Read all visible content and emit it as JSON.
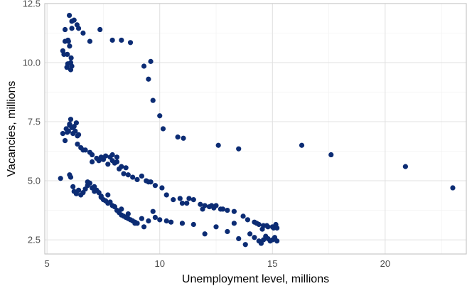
{
  "chart_data": {
    "type": "scatter",
    "title": "",
    "xlabel": "Unemployment level, millions",
    "ylabel": "Vacancies, millions",
    "xlim": [
      4.9,
      23.6
    ],
    "ylim": [
      1.9,
      12.5
    ],
    "x_ticks": [
      5,
      10,
      15,
      20
    ],
    "y_ticks": [
      2.5,
      5.0,
      7.5,
      10.0,
      12.5
    ],
    "x_tick_labels": [
      "5",
      "10",
      "15",
      "20"
    ],
    "y_tick_labels": [
      "2.5",
      "5.0",
      "7.5",
      "10.0",
      "12.5"
    ],
    "grid": true,
    "legend": "none",
    "point_color": "#0c2c74",
    "series": [
      {
        "x": [
          5.99,
          6.2,
          6.33,
          6.1,
          6.4,
          6.6,
          6.1,
          5.8,
          5.93,
          5.95,
          5.8,
          6.0,
          5.7,
          5.75,
          5.9,
          6.07,
          6.05,
          5.92,
          6.1,
          5.88,
          6.05,
          7.35,
          6.9,
          7.9,
          8.3,
          8.7,
          9.3,
          9.6,
          9.5,
          9.7,
          10.0,
          10.15,
          10.8,
          11.05,
          12.6,
          13.5,
          16.3,
          17.6,
          20.9,
          23.0
        ],
        "y": [
          12.0,
          11.8,
          11.6,
          11.75,
          11.45,
          11.25,
          11.45,
          11.4,
          10.95,
          10.9,
          10.9,
          10.7,
          10.5,
          10.35,
          10.35,
          10.2,
          10.0,
          9.95,
          9.85,
          9.8,
          9.7,
          11.4,
          10.9,
          10.95,
          10.95,
          10.85,
          9.85,
          10.05,
          9.3,
          8.4,
          7.75,
          7.2,
          6.85,
          6.8,
          6.5,
          6.35,
          6.5,
          6.1,
          5.6,
          4.7
        ]
      },
      {
        "x": [
          5.7,
          5.85,
          6.0,
          6.2,
          6.3,
          6.05,
          5.95,
          6.15,
          6.35,
          6.4,
          5.9,
          6.1,
          6.25,
          6.0,
          5.8,
          6.35,
          6.5,
          6.6,
          6.7,
          6.9,
          7.0,
          7.2,
          7.4,
          7.6,
          7.8,
          7.9,
          8.0,
          8.1,
          7.5,
          7.7,
          8.2,
          8.4,
          8.6,
          8.5,
          8.8,
          9.0,
          9.2,
          9.4,
          9.6,
          9.8,
          10.3,
          10.6,
          10.9,
          11.2,
          11.5,
          11.8,
          12.0,
          12.2,
          12.5,
          12.8,
          13.0,
          13.3,
          13.7,
          13.9,
          14.2,
          14.4,
          14.6,
          14.8,
          15.0,
          15.2,
          7.0,
          7.3,
          7.9,
          8.1,
          8.3,
          9.5,
          10.1,
          11.0,
          11.9,
          12.4,
          12.7
        ],
        "y": [
          7.0,
          7.2,
          7.35,
          7.3,
          7.45,
          7.6,
          7.1,
          7.0,
          6.9,
          6.95,
          7.05,
          7.25,
          7.1,
          7.4,
          6.7,
          6.55,
          6.4,
          6.3,
          6.3,
          6.2,
          6.1,
          5.95,
          6.0,
          6.05,
          6.0,
          5.85,
          5.75,
          5.8,
          5.9,
          5.7,
          5.5,
          5.3,
          5.25,
          5.55,
          5.15,
          5.05,
          5.2,
          5.0,
          4.95,
          4.8,
          4.4,
          4.2,
          4.25,
          4.05,
          4.2,
          4.0,
          3.95,
          3.9,
          3.95,
          3.8,
          3.75,
          3.7,
          3.5,
          3.35,
          3.25,
          3.15,
          3.1,
          3.05,
          3.05,
          3.0,
          5.8,
          5.85,
          6.1,
          6.0,
          5.6,
          4.95,
          4.7,
          4.05,
          3.8,
          3.85,
          3.8
        ]
      },
      {
        "x": [
          5.6,
          6.0,
          6.05,
          6.15,
          6.2,
          6.3,
          6.4,
          6.5,
          6.6,
          6.7,
          6.8,
          6.9,
          7.0,
          7.1,
          7.2,
          7.3,
          7.4,
          7.5,
          7.6,
          7.7,
          7.8,
          7.9,
          8.0,
          8.1,
          8.2,
          8.3,
          8.4,
          8.5,
          8.6,
          8.7,
          8.8,
          8.9,
          9.0,
          9.2,
          9.5,
          9.8,
          10.0,
          10.5,
          11.0,
          11.5,
          12.0,
          12.5,
          13.0,
          13.5,
          13.8,
          14.0,
          14.2,
          14.4,
          14.5,
          14.6,
          14.7,
          14.8,
          14.9,
          15.0,
          15.1,
          15.2,
          6.8,
          7.1,
          7.4,
          7.7,
          8.0,
          8.3,
          8.6,
          8.9,
          9.3,
          9.7,
          10.3,
          11.3,
          12.3,
          13.3,
          14.3,
          14.55,
          14.75,
          15.05,
          15.15
        ],
        "y": [
          5.1,
          5.25,
          5.15,
          4.75,
          4.55,
          4.45,
          4.6,
          4.4,
          4.5,
          4.65,
          4.8,
          4.9,
          4.7,
          4.75,
          4.6,
          4.5,
          4.35,
          4.2,
          4.15,
          4.05,
          4.1,
          3.95,
          3.9,
          3.75,
          3.65,
          3.55,
          3.5,
          3.45,
          3.4,
          3.35,
          3.3,
          3.25,
          3.2,
          3.4,
          3.3,
          3.45,
          3.35,
          3.25,
          3.2,
          3.15,
          2.75,
          3.05,
          2.85,
          2.55,
          2.3,
          2.75,
          2.6,
          2.45,
          2.35,
          2.5,
          2.65,
          2.55,
          2.45,
          2.5,
          2.6,
          2.45,
          4.95,
          4.55,
          4.3,
          4.4,
          3.9,
          3.8,
          3.6,
          3.2,
          3.05,
          3.7,
          3.3,
          4.25,
          3.95,
          3.2,
          3.2,
          2.95,
          3.1,
          3.0,
          3.15
        ]
      }
    ]
  }
}
